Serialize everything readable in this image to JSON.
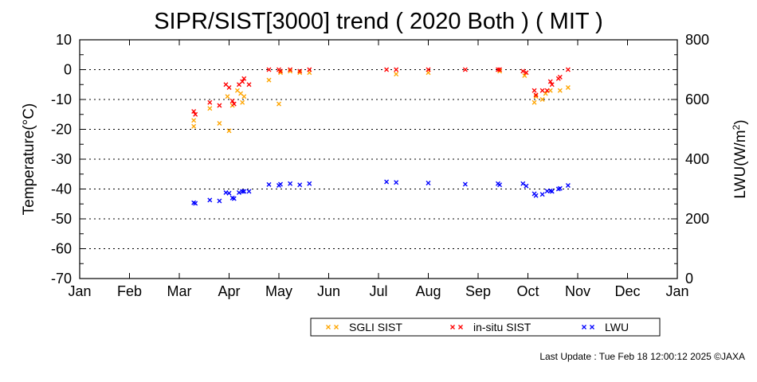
{
  "chart_data": {
    "type": "scatter",
    "title": "SIPR/SIST[3000] trend ( 2020 Both ) ( MIT )",
    "ylabel_left": "Temperature(°C)",
    "ylabel_right_main": "LWU(W/m",
    "ylabel_right_sup": "2",
    "ylabel_right_tail": ")",
    "x_ticks": [
      "Jan",
      "Feb",
      "Mar",
      "Apr",
      "May",
      "Jun",
      "Jul",
      "Aug",
      "Sep",
      "Oct",
      "Nov",
      "Dec",
      "Jan"
    ],
    "ylim_left": [
      -70,
      10
    ],
    "ylim_right": [
      0,
      800
    ],
    "y_ticks_left": [
      "10",
      "0",
      "-10",
      "-20",
      "-30",
      "-40",
      "-50",
      "-60",
      "-70"
    ],
    "y_ticks_right": [
      "800",
      "600",
      "400",
      "200",
      "0"
    ],
    "grid": "dotted horizontal",
    "legend_placement": "bottom-right",
    "series": [
      {
        "name": "SGLI SIST",
        "axis": "left",
        "color": "#ffa500",
        "points": [
          [
            "Mar 10",
            -19
          ],
          [
            "Mar 10",
            -17
          ],
          [
            "Mar 20",
            -13
          ],
          [
            "Mar 26",
            -18
          ],
          [
            "Mar 31",
            -9
          ],
          [
            "Apr 1",
            -20.5
          ],
          [
            "Apr 3",
            -12
          ],
          [
            "Apr 6",
            -7
          ],
          [
            "Apr 8",
            -8
          ],
          [
            "Apr 9",
            -11
          ],
          [
            "Apr 10",
            -9
          ],
          [
            "Apr 25",
            -3.5
          ],
          [
            "May 1",
            -11.5
          ],
          [
            "May 2",
            -1
          ],
          [
            "May 8",
            -0.5
          ],
          [
            "May 14",
            -1
          ],
          [
            "May 20",
            -1
          ],
          [
            "Jul 12",
            -1.5
          ],
          [
            "Aug 1",
            -1
          ],
          [
            "Sep 14",
            -0.5
          ],
          [
            "Sep 29",
            -2
          ],
          [
            "Oct 5",
            -11
          ],
          [
            "Oct 6",
            -9
          ],
          [
            "Oct 10",
            -10
          ],
          [
            "Oct 12",
            -8
          ],
          [
            "Oct 15",
            -7
          ],
          [
            "Oct 21",
            -7
          ],
          [
            "Oct 26",
            -6
          ]
        ]
      },
      {
        "name": "in-situ SIST",
        "axis": "left",
        "color": "#ff0000",
        "points": [
          [
            "Mar 10",
            -14
          ],
          [
            "Mar 11",
            -15
          ],
          [
            "Mar 20",
            -11
          ],
          [
            "Mar 26",
            -12
          ],
          [
            "Mar 30",
            -5
          ],
          [
            "Apr 1",
            -6
          ],
          [
            "Apr 3",
            -10.5
          ],
          [
            "Apr 4",
            -11.5
          ],
          [
            "Apr 7",
            -5
          ],
          [
            "Apr 9",
            -4
          ],
          [
            "Apr 10",
            -3
          ],
          [
            "Apr 13",
            -5
          ],
          [
            "Apr 25",
            0
          ],
          [
            "May 1",
            0
          ],
          [
            "May 2",
            -0.5
          ],
          [
            "May 8",
            0
          ],
          [
            "May 14",
            -0.5
          ],
          [
            "May 20",
            0
          ],
          [
            "Jul 6",
            0
          ],
          [
            "Jul 12",
            0
          ],
          [
            "Aug 1",
            0
          ],
          [
            "Aug 24",
            0
          ],
          [
            "Sep 13",
            0
          ],
          [
            "Sep 14",
            0
          ],
          [
            "Sep 28",
            -0.5
          ],
          [
            "Sep 30",
            -1
          ],
          [
            "Oct 5",
            -7
          ],
          [
            "Oct 6",
            -8.5
          ],
          [
            "Oct 10",
            -7
          ],
          [
            "Oct 13",
            -7
          ],
          [
            "Oct 15",
            -4
          ],
          [
            "Oct 16",
            -5
          ],
          [
            "Oct 20",
            -3
          ],
          [
            "Oct 21",
            -2.5
          ],
          [
            "Oct 26",
            0
          ]
        ]
      },
      {
        "name": "LWU",
        "axis": "right",
        "color": "#0000ff",
        "points": [
          [
            "Mar 10",
            254
          ],
          [
            "Mar 11",
            252
          ],
          [
            "Mar 20",
            263
          ],
          [
            "Mar 26",
            260
          ],
          [
            "Mar 30",
            288
          ],
          [
            "Apr 1",
            286
          ],
          [
            "Apr 3",
            270
          ],
          [
            "Apr 4",
            268
          ],
          [
            "Apr 7",
            288
          ],
          [
            "Apr 9",
            292
          ],
          [
            "Apr 10",
            292
          ],
          [
            "Apr 13",
            292
          ],
          [
            "Apr 25",
            315
          ],
          [
            "May 1",
            312
          ],
          [
            "May 2",
            316
          ],
          [
            "May 8",
            318
          ],
          [
            "May 14",
            314
          ],
          [
            "May 20",
            318
          ],
          [
            "Jul 6",
            324
          ],
          [
            "Jul 12",
            322
          ],
          [
            "Aug 1",
            320
          ],
          [
            "Aug 24",
            316
          ],
          [
            "Sep 13",
            318
          ],
          [
            "Sep 14",
            314
          ],
          [
            "Sep 28",
            318
          ],
          [
            "Sep 30",
            310
          ],
          [
            "Oct 5",
            284
          ],
          [
            "Oct 6",
            278
          ],
          [
            "Oct 10",
            282
          ],
          [
            "Oct 13",
            293
          ],
          [
            "Oct 15",
            294
          ],
          [
            "Oct 16",
            292
          ],
          [
            "Oct 20",
            300
          ],
          [
            "Oct 21",
            302
          ],
          [
            "Oct 26",
            312
          ]
        ]
      }
    ]
  },
  "legend": [
    {
      "label": "SGLI SIST",
      "color": "#ffa500"
    },
    {
      "label": "in-situ SIST",
      "color": "#ff0000"
    },
    {
      "label": "LWU",
      "color": "#0000ff"
    }
  ],
  "footer": "Last Update : Tue Feb 18 12:00:12 2025  ©JAXA"
}
